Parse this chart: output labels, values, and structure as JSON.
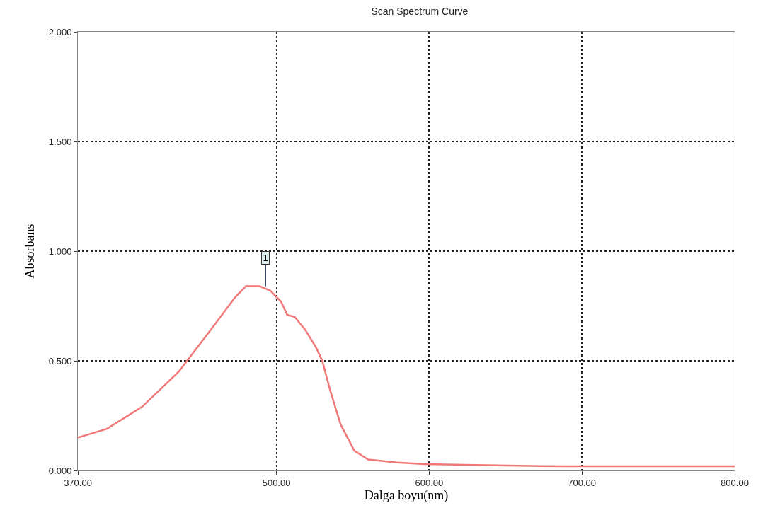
{
  "chart_data": {
    "type": "line",
    "title": "Scan Spectrum Curve",
    "xlabel": "Dalga boyu(nm)",
    "ylabel": "Absorbans",
    "x": [
      370,
      389,
      412,
      436,
      459,
      473,
      480,
      489,
      496,
      503,
      507,
      512,
      519,
      526,
      530,
      535,
      542,
      551,
      560,
      579,
      597,
      644,
      690,
      800
    ],
    "series": [
      {
        "color": "#f07878",
        "values": [
          0.15,
          0.19,
          0.29,
          0.45,
          0.66,
          0.79,
          0.84,
          0.84,
          0.82,
          0.77,
          0.71,
          0.7,
          0.64,
          0.56,
          0.5,
          0.37,
          0.21,
          0.09,
          0.05,
          0.036,
          0.029,
          0.023,
          0.019,
          0.019
        ]
      }
    ],
    "xlim": [
      370,
      800
    ],
    "xticks": [
      {
        "value": 370,
        "label": "370.00"
      },
      {
        "value": 500,
        "label": "500.00"
      },
      {
        "value": 600,
        "label": "600.00"
      },
      {
        "value": 700,
        "label": "700.00"
      },
      {
        "value": 800,
        "label": "800.00"
      }
    ],
    "ylim": [
      0,
      2
    ],
    "yticks": [
      {
        "value": 0,
        "label": "0.000"
      },
      {
        "value": 0.5,
        "label": "0.500"
      },
      {
        "value": 1,
        "label": "1.000"
      },
      {
        "value": 1.5,
        "label": "1.500"
      },
      {
        "value": 2,
        "label": "2.000"
      }
    ],
    "annotations": [
      {
        "text": "1",
        "x": 493,
        "y": 0.84
      }
    ],
    "grid": true,
    "line_style": "solid",
    "marker": "none"
  }
}
